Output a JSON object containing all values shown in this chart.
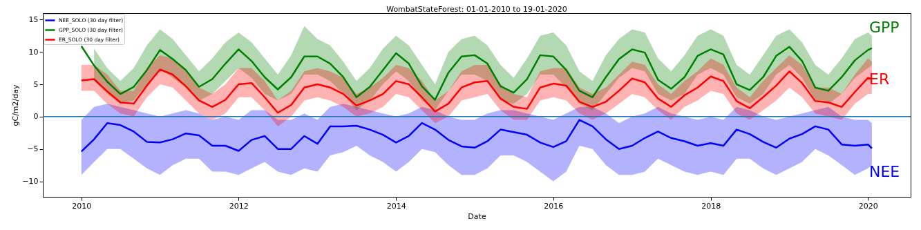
{
  "chart_data": {
    "type": "line",
    "title": "WombatStateForest: 01-01-2010 to 19-01-2020",
    "xlabel": "Date",
    "ylabel": "gC/m2/day",
    "x": [
      "2010-01-01",
      "2010-03-01",
      "2010-05-01",
      "2010-07-01",
      "2010-09-01",
      "2010-11-01",
      "2011-01-01",
      "2011-03-01",
      "2011-05-01",
      "2011-07-01",
      "2011-09-01",
      "2011-11-01",
      "2012-01-01",
      "2012-03-01",
      "2012-05-01",
      "2012-07-01",
      "2012-09-01",
      "2012-11-01",
      "2013-01-01",
      "2013-03-01",
      "2013-05-01",
      "2013-07-01",
      "2013-09-01",
      "2013-11-01",
      "2014-01-01",
      "2014-03-01",
      "2014-05-01",
      "2014-07-01",
      "2014-09-01",
      "2014-11-01",
      "2015-01-01",
      "2015-03-01",
      "2015-05-01",
      "2015-07-01",
      "2015-09-01",
      "2015-11-01",
      "2016-01-01",
      "2016-03-01",
      "2016-05-01",
      "2016-07-01",
      "2016-09-01",
      "2016-11-01",
      "2017-01-01",
      "2017-03-01",
      "2017-05-01",
      "2017-07-01",
      "2017-09-01",
      "2017-11-01",
      "2018-01-01",
      "2018-03-01",
      "2018-05-01",
      "2018-07-01",
      "2018-09-01",
      "2018-11-01",
      "2019-01-01",
      "2019-03-01",
      "2019-05-01",
      "2019-07-01",
      "2019-09-01",
      "2019-11-01",
      "2020-01-01",
      "2020-01-19"
    ],
    "series": [
      {
        "name": "NEE_SOLO (30 day filter)",
        "color": "#0000ff",
        "values": [
          -5.4,
          -3.5,
          -1.0,
          -1.3,
          -2.3,
          -3.9,
          -4.0,
          -3.5,
          -2.6,
          -2.9,
          -4.5,
          -4.5,
          -5.3,
          -3.6,
          -3.0,
          -5.0,
          -5.0,
          -3.0,
          -4.2,
          -1.5,
          -1.5,
          -1.4,
          -2.0,
          -2.8,
          -4.0,
          -3.0,
          -1.0,
          -2.0,
          -3.6,
          -4.6,
          -4.8,
          -3.8,
          -2.0,
          -2.4,
          -2.8,
          -4.0,
          -4.7,
          -3.8,
          -0.5,
          -1.5,
          -3.5,
          -5.0,
          -4.5,
          -3.3,
          -2.3,
          -3.3,
          -3.8,
          -4.5,
          -4.1,
          -4.5,
          -2.0,
          -2.7,
          -3.9,
          -4.8,
          -3.4,
          -2.7,
          -1.5,
          -2.0,
          -4.3,
          -4.5,
          -4.3,
          -4.9
        ],
        "upper": [
          -0.5,
          1.5,
          2,
          1.5,
          1,
          0.5,
          0,
          0.5,
          1,
          0.5,
          -0.5,
          0,
          -0.5,
          1,
          1,
          -0.5,
          -0.5,
          0.5,
          -0.5,
          1.5,
          2,
          1.5,
          1,
          0.5,
          0,
          0.5,
          1.5,
          1,
          0,
          -0.5,
          -0.5,
          0.5,
          1,
          1,
          0.5,
          0,
          -0.5,
          0.5,
          1.5,
          1.5,
          0.5,
          -1,
          0,
          0.5,
          1.5,
          0.5,
          0,
          -0.5,
          0,
          -0.5,
          1.5,
          1,
          0,
          -0.5,
          0,
          0.5,
          1,
          1.5,
          0,
          -0.5,
          -0.5,
          -1
        ],
        "lower": [
          -9,
          -7,
          -5,
          -5,
          -6.5,
          -8,
          -9,
          -7.5,
          -6.5,
          -6.5,
          -8.5,
          -8.5,
          -9,
          -8,
          -7,
          -8.5,
          -9,
          -8,
          -8.5,
          -6,
          -5.5,
          -4.5,
          -6,
          -7,
          -8.5,
          -7,
          -5,
          -5.5,
          -7.5,
          -9,
          -9,
          -8,
          -6,
          -6,
          -7,
          -8.5,
          -10,
          -8.5,
          -4.5,
          -5,
          -7.5,
          -9,
          -9,
          -8.5,
          -6.5,
          -7.5,
          -8.5,
          -9,
          -8.5,
          -9,
          -6.5,
          -6.5,
          -8,
          -9,
          -8,
          -7,
          -5,
          -6,
          -7.5,
          -9,
          -8,
          -7.5
        ]
      },
      {
        "name": "GPP_SOLO (30 day filter)",
        "color": "#008000",
        "values": [
          10.9,
          7.9,
          5.4,
          3.5,
          4.6,
          7.2,
          10.3,
          8.9,
          7.2,
          4.6,
          5.8,
          8.2,
          10.4,
          8.6,
          6.1,
          4.2,
          6.1,
          9.3,
          9.3,
          8.2,
          6.1,
          3.0,
          4.6,
          7.2,
          9.8,
          8.2,
          4.7,
          2.6,
          6.8,
          9.3,
          9.5,
          8.2,
          4.7,
          3.7,
          5.8,
          9.5,
          9.3,
          7.2,
          4.0,
          3.0,
          6.1,
          8.9,
          10.4,
          9.9,
          5.7,
          4.3,
          6.1,
          9.4,
          10.4,
          9.6,
          5.0,
          4.1,
          6.1,
          9.4,
          10.8,
          8.6,
          4.5,
          4.0,
          6.1,
          8.7,
          10.3,
          10.6
        ],
        "upper": [
          null,
          10.5,
          7.5,
          5.5,
          7.5,
          11,
          13.5,
          12,
          9.5,
          7,
          9,
          11.5,
          13,
          11.5,
          9,
          6.5,
          9.5,
          14,
          12,
          11,
          8.5,
          5.5,
          7.5,
          10.5,
          12.5,
          11,
          8,
          5,
          10,
          12,
          12.5,
          11,
          8,
          6,
          9,
          12.5,
          13,
          11,
          7,
          5.5,
          9.5,
          12,
          13.5,
          13,
          9,
          7,
          9.5,
          12.5,
          13.5,
          12.5,
          8,
          6.5,
          9.5,
          12.5,
          13.5,
          11.5,
          8,
          6.5,
          9,
          12,
          13,
          12.5
        ],
        "lower": [
          null,
          5.5,
          3.5,
          2,
          2.5,
          5,
          7.5,
          6,
          4.5,
          2.5,
          3.5,
          5.5,
          7.5,
          6,
          3.5,
          2.5,
          3.5,
          6.5,
          6.5,
          5.5,
          3.5,
          1,
          2.5,
          5,
          7,
          5.5,
          2.5,
          1,
          4,
          6.5,
          6.5,
          5.5,
          2.5,
          2,
          3.5,
          6.5,
          6.5,
          4.5,
          2,
          1,
          3.5,
          6,
          7.5,
          7,
          3.5,
          2.5,
          3.5,
          6.5,
          7.5,
          6.5,
          3,
          2,
          3.5,
          6.5,
          8,
          6,
          2.5,
          2,
          3.5,
          6,
          7.5,
          8
        ]
      },
      {
        "name": "ER_SOLO (30 day filter)",
        "color": "#ff0000",
        "values": [
          5.6,
          5.8,
          3.9,
          2.2,
          2.0,
          4.8,
          7.3,
          6.5,
          4.7,
          2.5,
          1.5,
          2.6,
          5.0,
          5.2,
          3.0,
          0.6,
          1.8,
          4.5,
          5.0,
          4.5,
          3.5,
          1.7,
          2.5,
          3.5,
          5.5,
          5.0,
          3.0,
          0.8,
          2.0,
          4.5,
          5.3,
          5.5,
          2.8,
          1.5,
          1.2,
          4.5,
          5.1,
          4.8,
          2.3,
          1.5,
          2.3,
          4.0,
          5.9,
          5.3,
          2.8,
          1.5,
          3.3,
          4.5,
          6.2,
          5.5,
          2.4,
          1.3,
          3.0,
          4.8,
          7.0,
          5.2,
          2.4,
          2.2,
          1.5,
          3.8,
          6.0,
          5.8
        ],
        "upper": [
          8,
          8,
          6.5,
          4,
          4,
          7.5,
          9.5,
          9,
          7,
          4.5,
          3.5,
          5,
          7.5,
          7.5,
          5.5,
          2.5,
          4,
          7,
          7.5,
          7,
          6,
          3.5,
          4.5,
          6,
          8,
          7.5,
          5.5,
          2.5,
          4,
          7,
          8,
          8,
          5,
          3.5,
          3,
          7,
          7.5,
          7.5,
          4.5,
          3.5,
          4.5,
          6.5,
          8.5,
          8,
          5,
          3.5,
          5.5,
          7,
          9,
          8,
          4.5,
          3,
          5.5,
          7.5,
          9.5,
          8,
          4.5,
          4.5,
          3.5,
          6.5,
          9,
          8.5
        ],
        "lower": [
          4,
          4,
          2,
          0.5,
          0,
          3,
          5,
          4.5,
          2.5,
          0.5,
          -0.5,
          0.5,
          3,
          3,
          1,
          -1.5,
          0,
          2.5,
          3,
          2.5,
          1.5,
          0,
          0.5,
          1.5,
          3.5,
          3,
          1,
          -1,
          0,
          2.5,
          3,
          3.5,
          1,
          -0.5,
          -0.5,
          2.5,
          3,
          2.5,
          0.5,
          -0.5,
          0.5,
          2,
          3.5,
          3,
          1,
          -0.5,
          1.5,
          2.5,
          4,
          3.5,
          0.5,
          -0.5,
          1,
          2.5,
          4.5,
          3,
          0.5,
          0,
          -0.5,
          2,
          3.5,
          3.5
        ]
      }
    ],
    "annotations": [
      "NEE",
      "GPP",
      "ER"
    ],
    "ref_lines": [
      {
        "axis": "y",
        "value": 0,
        "color": "#1f77b4"
      }
    ],
    "xlim": [
      "2009-07-06",
      "2020-07-17"
    ],
    "xticks": [
      "2010",
      "2012",
      "2014",
      "2016",
      "2018",
      "2020"
    ],
    "ylim": [
      -12.4,
      16
    ],
    "yticks": [
      -10,
      -5,
      0,
      5,
      10,
      15
    ],
    "legend": "top left",
    "grid": false
  }
}
